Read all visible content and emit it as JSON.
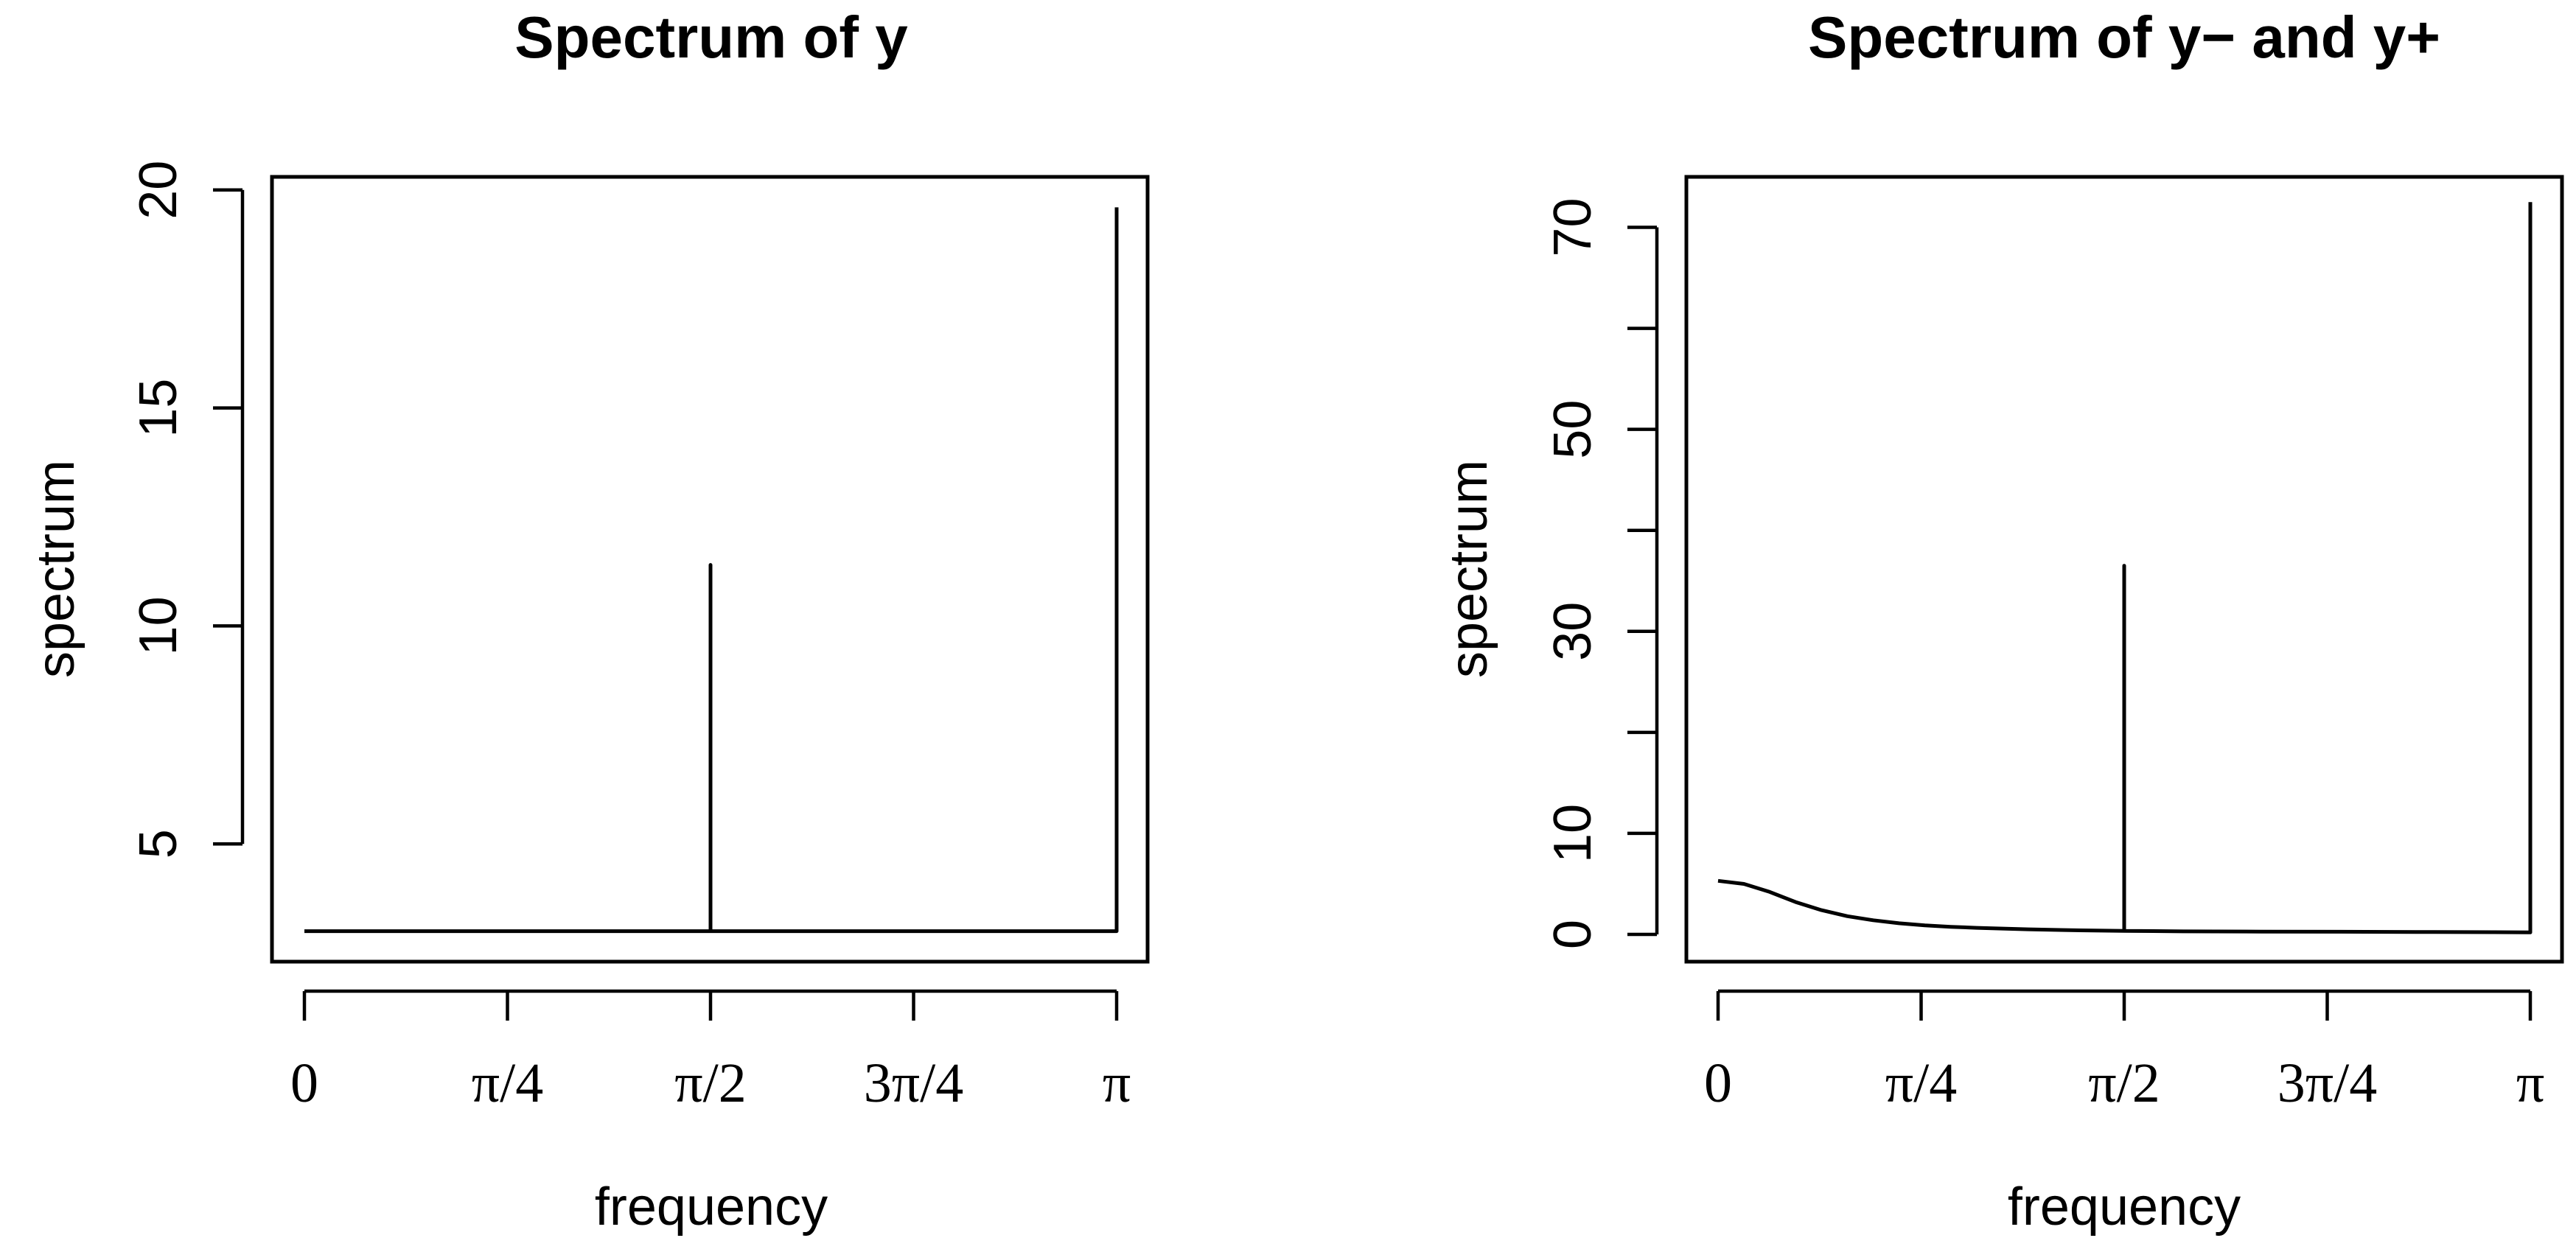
{
  "chart_data": [
    {
      "type": "line",
      "title": "Spectrum of y",
      "xlabel": "frequency",
      "ylabel": "spectrum",
      "xlim": [
        0,
        3.14159
      ],
      "ylim": [
        2.3,
        20.3
      ],
      "x_ticks": [
        0,
        0.7854,
        1.5708,
        2.3562,
        3.14159
      ],
      "x_tick_labels": [
        "0",
        "π/4",
        "π/2",
        "3π/4",
        "π"
      ],
      "y_ticks": [
        5,
        10,
        15,
        20
      ],
      "y_tick_labels": [
        "5",
        "10",
        "15",
        "20"
      ],
      "grid": false,
      "series": [
        {
          "x": [
            0,
            1.5708,
            1.5708,
            1.5708,
            3.14159,
            3.14159
          ],
          "y": [
            3,
            3,
            11.4,
            3,
            3,
            19.6
          ]
        }
      ]
    },
    {
      "type": "line",
      "title": "Spectrum of y− and y+",
      "xlabel": "frequency",
      "ylabel": "spectrum",
      "xlim": [
        0,
        3.14159
      ],
      "ylim": [
        -2.7,
        75
      ],
      "x_ticks": [
        0,
        0.7854,
        1.5708,
        2.3562,
        3.14159
      ],
      "x_tick_labels": [
        "0",
        "π/4",
        "π/2",
        "3π/4",
        "π"
      ],
      "y_ticks": [
        0,
        10,
        20,
        30,
        40,
        50,
        60,
        70
      ],
      "y_tick_labels": [
        "0",
        "10",
        "",
        "30",
        "",
        "50",
        "",
        "70"
      ],
      "grid": false,
      "series": [
        {
          "x": [
            0,
            0.1,
            0.2,
            0.3,
            0.4,
            0.5,
            0.6,
            0.7,
            0.8,
            0.9,
            1.0,
            1.2,
            1.4,
            1.5708,
            1.5708,
            1.5708,
            1.8,
            2.1,
            2.4,
            2.7,
            3.0,
            3.14159,
            3.14159
          ],
          "y": [
            5.3,
            5.0,
            4.2,
            3.2,
            2.4,
            1.8,
            1.4,
            1.1,
            0.9,
            0.75,
            0.65,
            0.5,
            0.4,
            0.35,
            36.5,
            0.35,
            0.3,
            0.28,
            0.26,
            0.24,
            0.22,
            0.2,
            72.5
          ]
        }
      ]
    }
  ]
}
